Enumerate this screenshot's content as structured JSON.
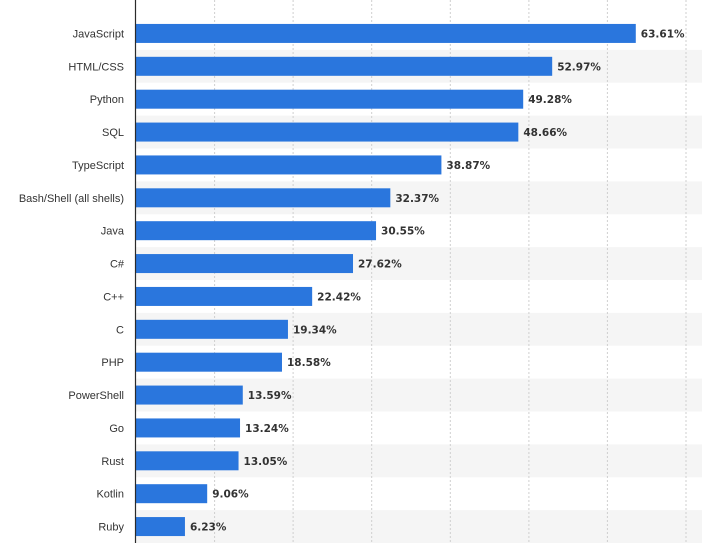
{
  "chart_data": {
    "type": "bar",
    "orientation": "horizontal",
    "title": "",
    "xlabel": "",
    "ylabel": "",
    "xlim": [
      0,
      70
    ],
    "x_gridlines": [
      0,
      10,
      20,
      30,
      40,
      50,
      60,
      70
    ],
    "grid": true,
    "legend": "none",
    "categories": [
      "JavaScript",
      "HTML/CSS",
      "Python",
      "SQL",
      "TypeScript",
      "Bash/Shell (all shells)",
      "Java",
      "C#",
      "C++",
      "C",
      "PHP",
      "PowerShell",
      "Go",
      "Rust",
      "Kotlin",
      "Ruby"
    ],
    "values": [
      63.61,
      52.97,
      49.28,
      48.66,
      38.87,
      32.37,
      30.55,
      27.62,
      22.42,
      19.34,
      18.58,
      13.59,
      13.24,
      13.05,
      9.06,
      6.23
    ],
    "value_labels": [
      "63.61%",
      "52.97%",
      "49.28%",
      "48.66%",
      "38.87%",
      "32.37%",
      "30.55%",
      "27.62%",
      "22.42%",
      "19.34%",
      "18.58%",
      "13.59%",
      "13.24%",
      "13.05%",
      "9.06%",
      "6.23%"
    ],
    "bar_color": "#2a76dd",
    "band_color": "#f5f5f5",
    "grid_color": "#cfcfcf",
    "axis_color": "#2b2b2b"
  }
}
